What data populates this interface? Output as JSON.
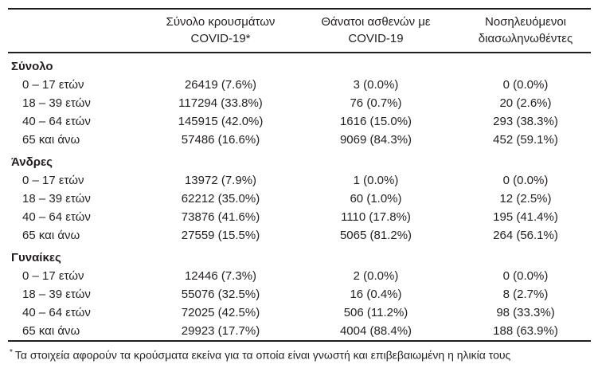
{
  "table": {
    "columns": [
      {
        "line1": "Σύνολο κρουσμάτων",
        "line2": "COVID-19*"
      },
      {
        "line1": "Θάνατοι ασθενών με",
        "line2": "COVID-19"
      },
      {
        "line1": "Νοσηλευόμενοι",
        "line2": "διασωληνωθέντες"
      }
    ],
    "groups": [
      {
        "label": "Σύνολο",
        "rows": [
          {
            "label": "0 – 17 ετών",
            "cases": "26419 (7.6%)",
            "deaths": "3 (0.0%)",
            "intubated": "0 (0.0%)"
          },
          {
            "label": "18 – 39 ετών",
            "cases": "117294 (33.8%)",
            "deaths": "76 (0.7%)",
            "intubated": "20 (2.6%)"
          },
          {
            "label": "40 – 64 ετών",
            "cases": "145915 (42.0%)",
            "deaths": "1616 (15.0%)",
            "intubated": "293 (38.3%)"
          },
          {
            "label": "65 και άνω",
            "cases": "57486 (16.6%)",
            "deaths": "9069 (84.3%)",
            "intubated": "452 (59.1%)"
          }
        ]
      },
      {
        "label": "Άνδρες",
        "rows": [
          {
            "label": "0 – 17 ετών",
            "cases": "13972 (7.9%)",
            "deaths": "1 (0.0%)",
            "intubated": "0 (0.0%)"
          },
          {
            "label": "18 – 39 ετών",
            "cases": "62212 (35.0%)",
            "deaths": "60 (1.0%)",
            "intubated": "12 (2.5%)"
          },
          {
            "label": "40 – 64 ετών",
            "cases": "73876 (41.6%)",
            "deaths": "1110 (17.8%)",
            "intubated": "195 (41.4%)"
          },
          {
            "label": "65 και άνω",
            "cases": "27559 (15.5%)",
            "deaths": "5065 (81.2%)",
            "intubated": "264 (56.1%)"
          }
        ]
      },
      {
        "label": "Γυναίκες",
        "rows": [
          {
            "label": "0 – 17 ετών",
            "cases": "12446 (7.3%)",
            "deaths": "2 (0.0%)",
            "intubated": "0 (0.0%)"
          },
          {
            "label": "18 – 39 ετών",
            "cases": "55076 (32.5%)",
            "deaths": "16 (0.4%)",
            "intubated": "8 (2.7%)"
          },
          {
            "label": "40 – 64 ετών",
            "cases": "72025 (42.5%)",
            "deaths": "506 (11.2%)",
            "intubated": "98 (33.3%)"
          },
          {
            "label": "65 και άνω",
            "cases": "29923 (17.7%)",
            "deaths": "4004 (88.4%)",
            "intubated": "188 (63.9%)"
          }
        ]
      }
    ]
  },
  "footnote": {
    "marker": "*",
    "text": "Τα στοιχεία αφορούν τα κρούσματα εκείνα για τα οποία είναι γνωστή και επιβεβαιωμένη η ηλικία τους"
  },
  "colors": {
    "text": "#231f20",
    "rule": "#231f20",
    "background": "#ffffff"
  }
}
